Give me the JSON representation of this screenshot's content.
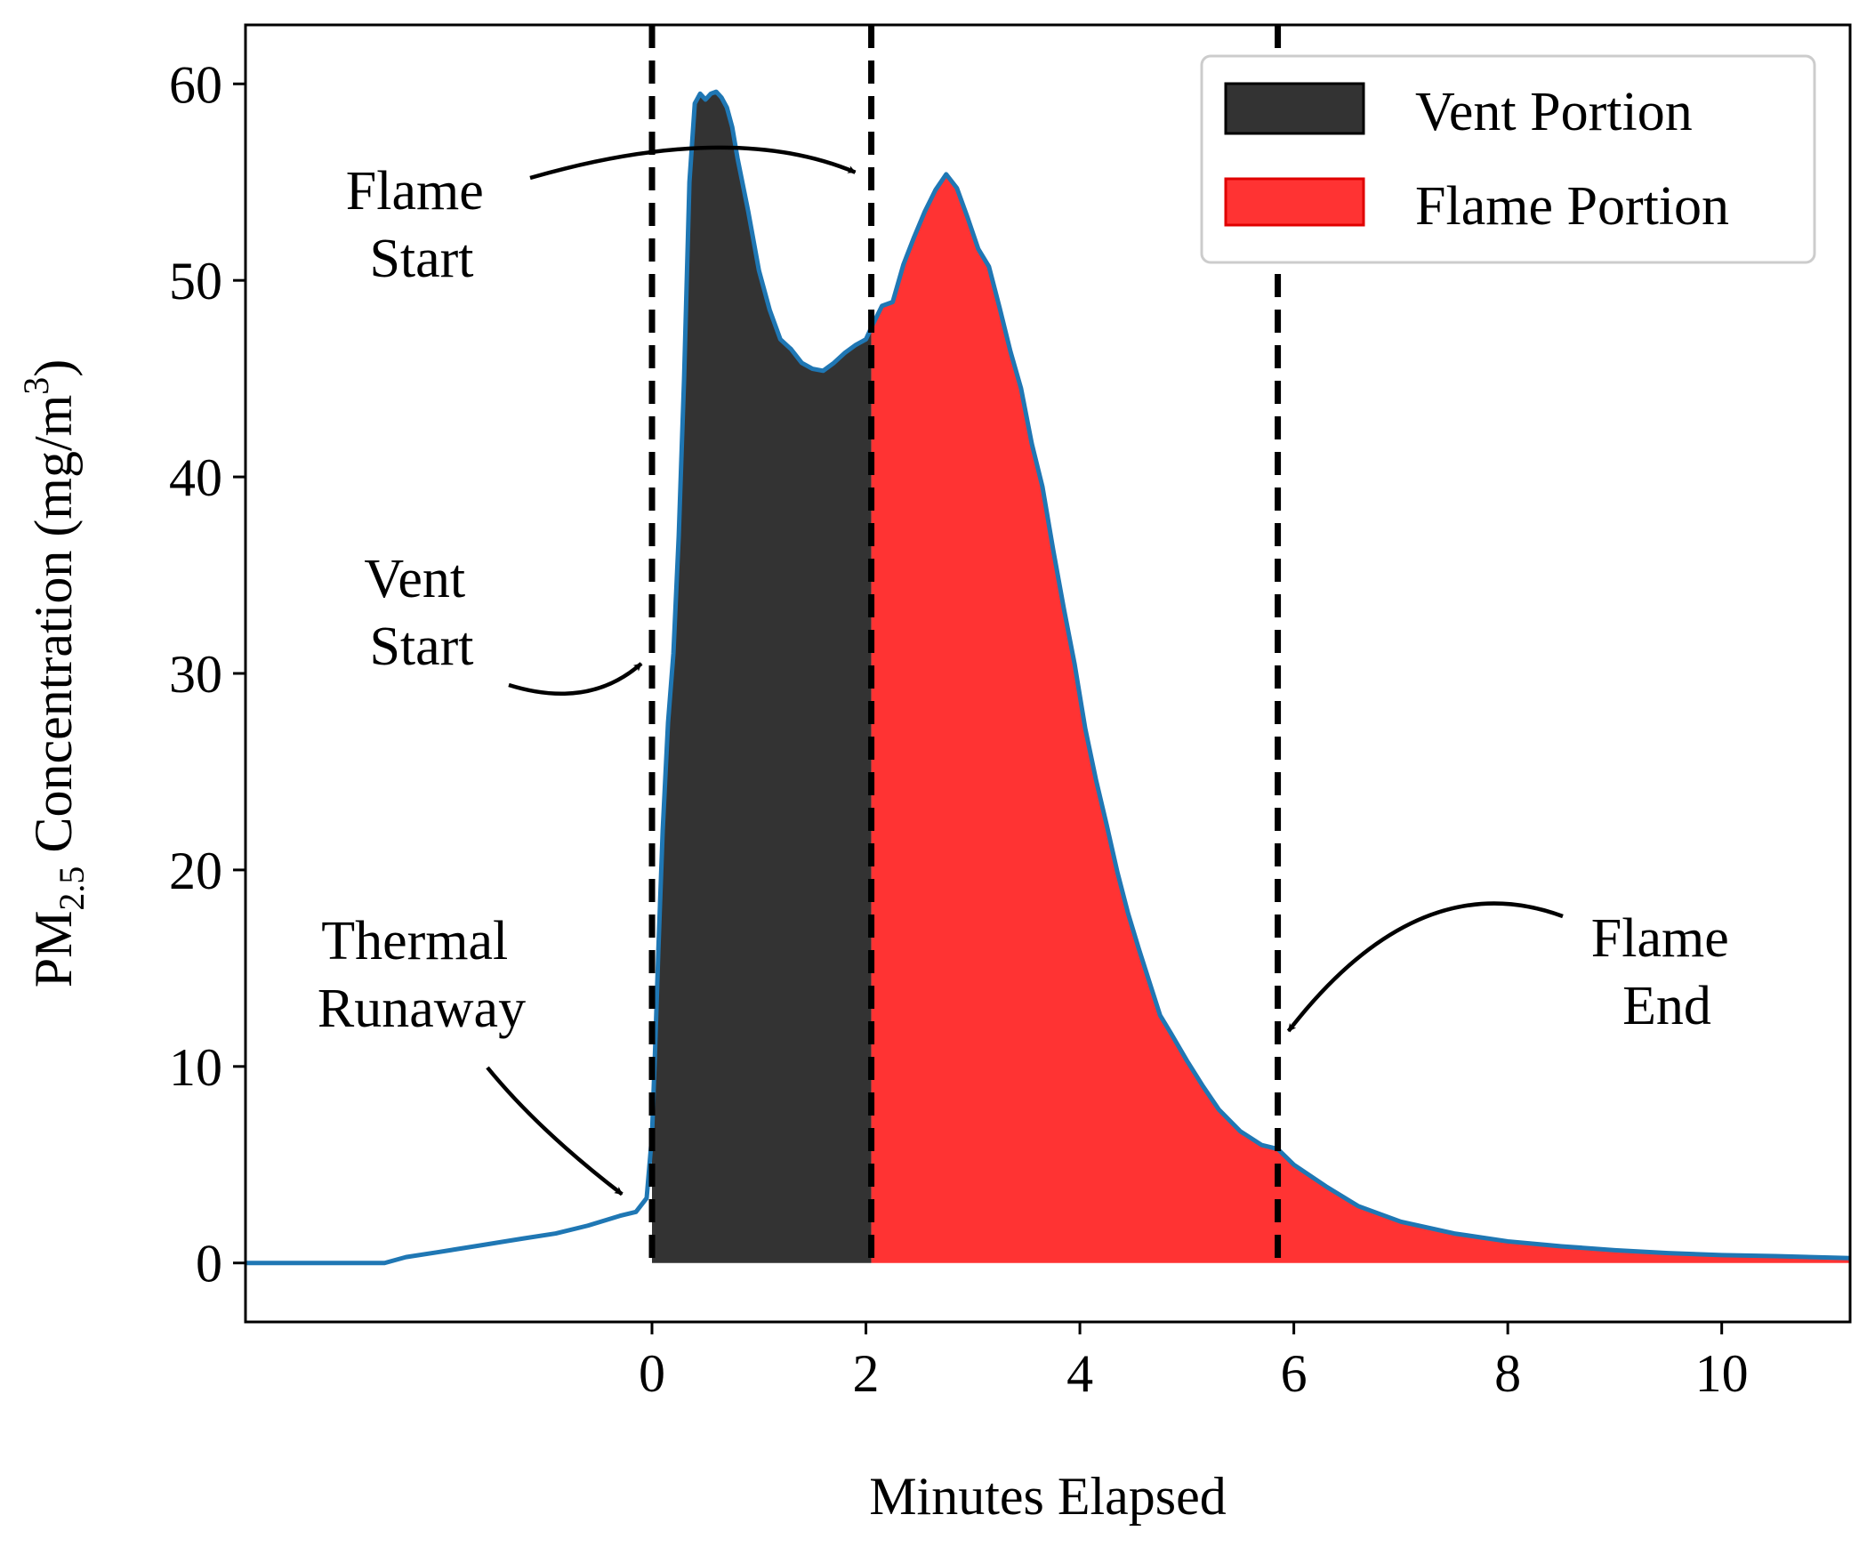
{
  "chart_data": {
    "type": "area",
    "title": "",
    "xlabel": "Minutes Elapsed",
    "ylabel_prefix": "PM",
    "ylabel_sub": "2.5",
    "ylabel_suffix": " Concentration (mg/m",
    "ylabel_sup": "3",
    "ylabel_close": ")",
    "xlim": [
      -3.8,
      11.2
    ],
    "ylim": [
      -3,
      63
    ],
    "xticks": [
      0,
      2,
      4,
      6,
      8,
      10
    ],
    "yticks": [
      0,
      10,
      20,
      30,
      40,
      50,
      60
    ],
    "grid": false,
    "legend_position": "top-right",
    "colors": {
      "line": "#1f77b4",
      "vent": "#333333",
      "flame": "#ff3333",
      "flame_edge": "#e00000",
      "marker": "#000000"
    },
    "legend": [
      {
        "label": "Vent Portion",
        "color": "#333333",
        "edge": "#000000"
      },
      {
        "label": "Flame Portion",
        "color": "#ff3333",
        "edge": "#e00000"
      }
    ],
    "event_lines": [
      {
        "name": "vent-start",
        "x": 0.0
      },
      {
        "name": "flame-start",
        "x": 2.05
      },
      {
        "name": "flame-end",
        "x": 5.85
      }
    ],
    "regions": [
      {
        "name": "vent",
        "from": 0.0,
        "to": 2.05
      },
      {
        "name": "flame",
        "from": 2.05,
        "to": 11.2
      }
    ],
    "annotations": [
      {
        "name": "thermal-runaway",
        "lines": [
          "Thermal",
          "Runaway"
        ],
        "point_x": -0.28,
        "point_y": 3.5
      },
      {
        "name": "vent-start",
        "lines": [
          "Vent",
          "Start"
        ],
        "point_x": -0.1,
        "point_y": 30.5
      },
      {
        "name": "flame-start",
        "lines": [
          "Flame",
          "Start"
        ],
        "point_x": 1.9,
        "point_y": 55.5
      },
      {
        "name": "flame-end",
        "lines": [
          "Flame",
          "End"
        ],
        "point_x": 5.95,
        "point_y": 11.8
      }
    ],
    "series": [
      {
        "name": "PM2.5 Concentration",
        "x": [
          -3.8,
          -2.5,
          -2.3,
          -2.0,
          -1.6,
          -1.2,
          -0.9,
          -0.6,
          -0.3,
          -0.15,
          -0.05,
          0.0,
          0.03,
          0.06,
          0.1,
          0.15,
          0.2,
          0.25,
          0.3,
          0.35,
          0.4,
          0.45,
          0.5,
          0.55,
          0.6,
          0.65,
          0.7,
          0.75,
          0.8,
          0.9,
          1.0,
          1.1,
          1.2,
          1.3,
          1.4,
          1.5,
          1.6,
          1.7,
          1.8,
          1.9,
          2.0,
          2.05,
          2.15,
          2.25,
          2.35,
          2.45,
          2.55,
          2.65,
          2.75,
          2.85,
          2.95,
          3.05,
          3.15,
          3.25,
          3.35,
          3.45,
          3.55,
          3.65,
          3.75,
          3.85,
          3.95,
          4.05,
          4.15,
          4.25,
          4.35,
          4.45,
          4.55,
          4.65,
          4.75,
          4.85,
          5.0,
          5.15,
          5.3,
          5.5,
          5.7,
          5.85,
          6.0,
          6.3,
          6.6,
          7.0,
          7.5,
          8.0,
          8.5,
          9.0,
          9.5,
          10.0,
          10.5,
          11.2
        ],
        "y": [
          0.0,
          0.0,
          0.3,
          0.55,
          0.9,
          1.25,
          1.5,
          1.9,
          2.4,
          2.6,
          3.3,
          6.5,
          11.0,
          16.0,
          22.0,
          27.5,
          31.0,
          37.0,
          45.0,
          55.0,
          59.0,
          59.5,
          59.2,
          59.5,
          59.6,
          59.3,
          58.8,
          57.8,
          56.2,
          53.5,
          50.5,
          48.5,
          47.0,
          46.5,
          45.8,
          45.5,
          45.4,
          45.8,
          46.3,
          46.7,
          47.0,
          47.6,
          48.7,
          48.9,
          50.8,
          52.2,
          53.5,
          54.6,
          55.4,
          54.7,
          53.2,
          51.6,
          50.7,
          48.6,
          46.4,
          44.5,
          41.7,
          39.5,
          36.3,
          33.3,
          30.5,
          27.2,
          24.6,
          22.3,
          19.9,
          17.8,
          16.0,
          14.3,
          12.6,
          11.7,
          10.3,
          9.0,
          7.8,
          6.7,
          6.0,
          5.8,
          5.0,
          3.9,
          2.9,
          2.1,
          1.5,
          1.1,
          0.85,
          0.65,
          0.5,
          0.4,
          0.35,
          0.25
        ]
      }
    ]
  }
}
